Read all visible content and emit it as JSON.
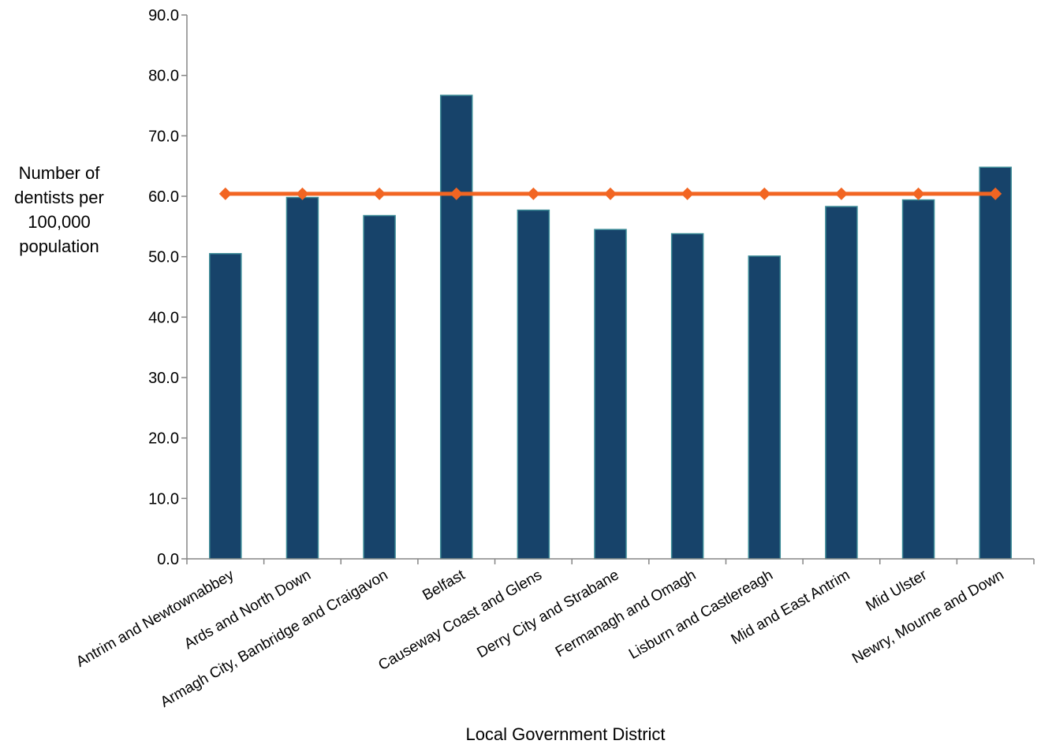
{
  "chart_data": {
    "type": "bar",
    "categories": [
      "Antrim and Newtownabbey",
      "Ards and North Down",
      "Armagh City, Banbridge and Craigavon",
      "Belfast",
      "Causeway Coast and Glens",
      "Derry City and Strabane",
      "Fermanagh and Omagh",
      "Lisburn and Castlereagh",
      "Mid and East Antrim",
      "Mid Ulster",
      "Newry, Mourne and Down"
    ],
    "series": [
      {
        "type": "bar",
        "values": [
          50.5,
          59.8,
          56.8,
          76.7,
          57.7,
          54.5,
          53.8,
          50.1,
          58.3,
          59.4,
          64.8
        ],
        "color": "#17436a"
      },
      {
        "type": "line",
        "marker": "diamond",
        "values": [
          60.4,
          60.4,
          60.4,
          60.4,
          60.4,
          60.4,
          60.4,
          60.4,
          60.4,
          60.4,
          60.4
        ],
        "color": "#f26522"
      }
    ],
    "y_tick_labels": [
      "0.0",
      "10.0",
      "20.0",
      "30.0",
      "40.0",
      "50.0",
      "60.0",
      "70.0",
      "80.0",
      "90.0"
    ],
    "ylim": [
      0,
      90
    ],
    "ylabel_lines": [
      "Number of",
      "dentists per",
      "100,000",
      "population"
    ],
    "xlabel": "Local Government District",
    "grid": false,
    "legend": "none"
  }
}
